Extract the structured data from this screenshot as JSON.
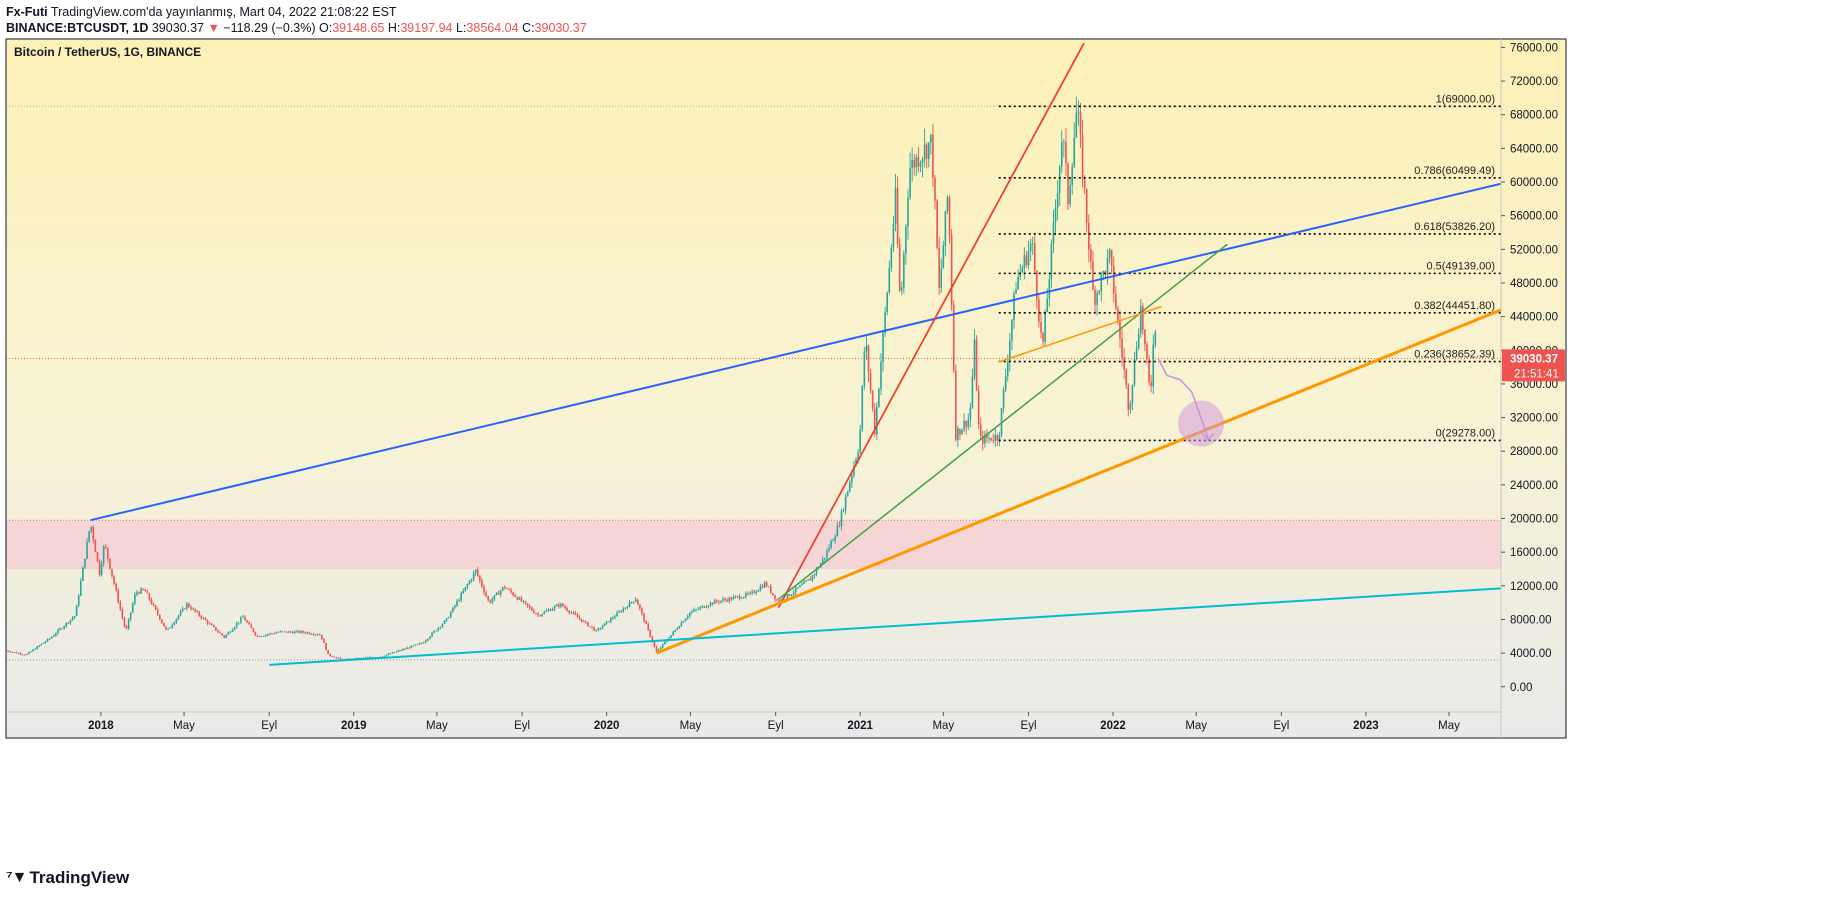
{
  "header": {
    "author": "Fx-Futi",
    "published": "TradingView.com'da yayınlanmış, Mart 04, 2022 21:08:22 EST",
    "symbol": "BINANCE:BTCUSDT, 1D",
    "last": "39030.37",
    "change": "−118.29 (−0.3%)",
    "open_label": "O:",
    "open": "39148.65",
    "high_label": "H:",
    "high": "39197.94",
    "low_label": "L:",
    "low": "38564.04",
    "close_label": "C:",
    "close": "39030.37"
  },
  "colors": {
    "up": "#26a69a",
    "down": "#ef5350",
    "blue_line": "#2962ff",
    "red_line": "#f23a2a",
    "green_line": "#43a047",
    "orange_line": "#ff9800",
    "cyan_line": "#00bcd4",
    "zone": "#f8bbd0"
  },
  "footer": {
    "brand": "TradingView",
    "logo_icon": "tradingview-logo-icon"
  },
  "chart_data": {
    "type": "candlestick",
    "title": "Bitcoin / TetherUS, 1G, BINANCE",
    "y_axis": {
      "ylim": [
        -3000,
        77000
      ],
      "ticks": [
        "76000.00",
        "72000.00",
        "68000.00",
        "64000.00",
        "60000.00",
        "56000.00",
        "52000.00",
        "48000.00",
        "44000.00",
        "40000.00",
        "36000.00",
        "32000.00",
        "28000.00",
        "24000.00",
        "20000.00",
        "16000.00",
        "12000.00",
        "8000.00",
        "4000.00",
        "0.00"
      ]
    },
    "x_axis": {
      "range": [
        "2017-08-17",
        "2023-07-15"
      ],
      "ticks": [
        {
          "label": "2018",
          "date": "2018-01-01",
          "bold": true
        },
        {
          "label": "May",
          "date": "2018-05-01"
        },
        {
          "label": "Eyl",
          "date": "2018-09-01"
        },
        {
          "label": "2019",
          "date": "2019-01-01",
          "bold": true
        },
        {
          "label": "May",
          "date": "2019-05-01"
        },
        {
          "label": "Eyl",
          "date": "2019-09-01"
        },
        {
          "label": "2020",
          "date": "2020-01-01",
          "bold": true
        },
        {
          "label": "May",
          "date": "2020-05-01"
        },
        {
          "label": "Eyl",
          "date": "2020-09-01"
        },
        {
          "label": "2021",
          "date": "2021-01-01",
          "bold": true
        },
        {
          "label": "May",
          "date": "2021-05-01"
        },
        {
          "label": "Eyl",
          "date": "2021-09-01"
        },
        {
          "label": "2022",
          "date": "2022-01-01",
          "bold": true
        },
        {
          "label": "May",
          "date": "2022-05-01"
        },
        {
          "label": "Eyl",
          "date": "2022-09-01"
        },
        {
          "label": "2023",
          "date": "2023-01-01",
          "bold": true
        },
        {
          "label": "May",
          "date": "2023-05-01"
        }
      ]
    },
    "price_path": [
      [
        "2017-08-17",
        4300
      ],
      [
        "2017-09-15",
        3800
      ],
      [
        "2017-10-20",
        5800
      ],
      [
        "2017-11-25",
        8500
      ],
      [
        "2017-12-17",
        19500
      ],
      [
        "2017-12-30",
        13500
      ],
      [
        "2018-01-06",
        17000
      ],
      [
        "2018-02-06",
        6500
      ],
      [
        "2018-02-20",
        11200
      ],
      [
        "2018-03-05",
        11500
      ],
      [
        "2018-04-06",
        6600
      ],
      [
        "2018-05-05",
        9800
      ],
      [
        "2018-06-28",
        5900
      ],
      [
        "2018-07-25",
        8300
      ],
      [
        "2018-08-14",
        6000
      ],
      [
        "2018-09-15",
        6500
      ],
      [
        "2018-10-20",
        6500
      ],
      [
        "2018-11-14",
        6200
      ],
      [
        "2018-11-25",
        3800
      ],
      [
        "2018-12-15",
        3200
      ],
      [
        "2019-02-10",
        3600
      ],
      [
        "2019-04-10",
        5200
      ],
      [
        "2019-05-15",
        8000
      ],
      [
        "2019-06-26",
        13800
      ],
      [
        "2019-07-15",
        10000
      ],
      [
        "2019-08-06",
        11900
      ],
      [
        "2019-09-24",
        8500
      ],
      [
        "2019-10-26",
        9800
      ],
      [
        "2019-12-17",
        6600
      ],
      [
        "2020-02-12",
        10500
      ],
      [
        "2020-03-13",
        4100
      ],
      [
        "2020-04-30",
        8800
      ],
      [
        "2020-06-01",
        10000
      ],
      [
        "2020-07-27",
        11000
      ],
      [
        "2020-08-17",
        12300
      ],
      [
        "2020-09-05",
        10000
      ],
      [
        "2020-10-21",
        12800
      ],
      [
        "2020-11-10",
        15300
      ],
      [
        "2020-12-01",
        19200
      ],
      [
        "2020-12-31",
        29000
      ],
      [
        "2021-01-08",
        41500
      ],
      [
        "2021-01-22",
        30500
      ],
      [
        "2021-02-21",
        58000
      ],
      [
        "2021-02-28",
        45000
      ],
      [
        "2021-03-13",
        61700
      ],
      [
        "2021-04-14",
        64800
      ],
      [
        "2021-04-25",
        47000
      ],
      [
        "2021-05-08",
        59000
      ],
      [
        "2021-05-19",
        30000
      ],
      [
        "2021-06-08",
        32000
      ],
      [
        "2021-06-15",
        40500
      ],
      [
        "2021-06-22",
        29300
      ],
      [
        "2021-07-20",
        29800
      ],
      [
        "2021-08-14",
        48000
      ],
      [
        "2021-09-06",
        52900
      ],
      [
        "2021-09-21",
        40000
      ],
      [
        "2021-10-20",
        66000
      ],
      [
        "2021-10-28",
        58000
      ],
      [
        "2021-11-10",
        69000
      ],
      [
        "2021-12-04",
        46000
      ],
      [
        "2021-12-27",
        51000
      ],
      [
        "2022-01-24",
        33000
      ],
      [
        "2022-02-10",
        45000
      ],
      [
        "2022-02-24",
        34300
      ],
      [
        "2022-03-02",
        45000
      ],
      [
        "2022-03-04",
        39030
      ]
    ],
    "fib_levels": [
      {
        "label": "1(69000.00)",
        "value": 69000
      },
      {
        "label": "0.786(60499.49)",
        "value": 60499.49
      },
      {
        "label": "0.618(53826.20)",
        "value": 53826.2
      },
      {
        "label": "0.5(49139.00)",
        "value": 49139.0
      },
      {
        "label": "0.382(44451.80)",
        "value": 44451.8
      },
      {
        "label": "0.236(38652.39)",
        "value": 38652.39
      },
      {
        "label": "0(29278.00)",
        "value": 29278.0
      }
    ],
    "fib_start": "2021-07-20",
    "trendlines": [
      {
        "color": "blue_line",
        "from": [
          "2017-12-17",
          19800
        ],
        "to": [
          "2023-07-15",
          59800
        ],
        "width": 2
      },
      {
        "color": "red_line",
        "from": [
          "2020-09-05",
          9400
        ],
        "to": [
          "2021-11-20",
          76500
        ],
        "width": 1.7
      },
      {
        "color": "green_line",
        "from": [
          "2020-09-05",
          10400
        ],
        "to": [
          "2022-06-15",
          52600
        ],
        "width": 1.5
      },
      {
        "color": "orange_line",
        "from": [
          "2020-03-13",
          4000
        ],
        "to": [
          "2023-07-15",
          44800
        ],
        "width": 3
      },
      {
        "color": "orange_line",
        "from": [
          "2021-07-20",
          38600
        ],
        "to": [
          "2022-03-12",
          45200
        ],
        "width": 1.5
      },
      {
        "color": "cyan_line",
        "from": [
          "2018-09-01",
          2600
        ],
        "to": [
          "2023-07-15",
          11700
        ],
        "width": 2
      }
    ],
    "zone": {
      "from": 14000,
      "to": 19800
    },
    "price_marker": {
      "value": "39030.37",
      "countdown": "21:51:41"
    },
    "projection": {
      "path": [
        [
          "2022-03-07",
          39000
        ],
        [
          "2022-03-20",
          37000
        ],
        [
          "2022-04-08",
          36500
        ],
        [
          "2022-04-25",
          35000
        ],
        [
          "2022-05-10",
          31500
        ],
        [
          "2022-05-18",
          29500
        ]
      ],
      "circle_center": [
        "2022-05-08",
        31300
      ]
    }
  }
}
